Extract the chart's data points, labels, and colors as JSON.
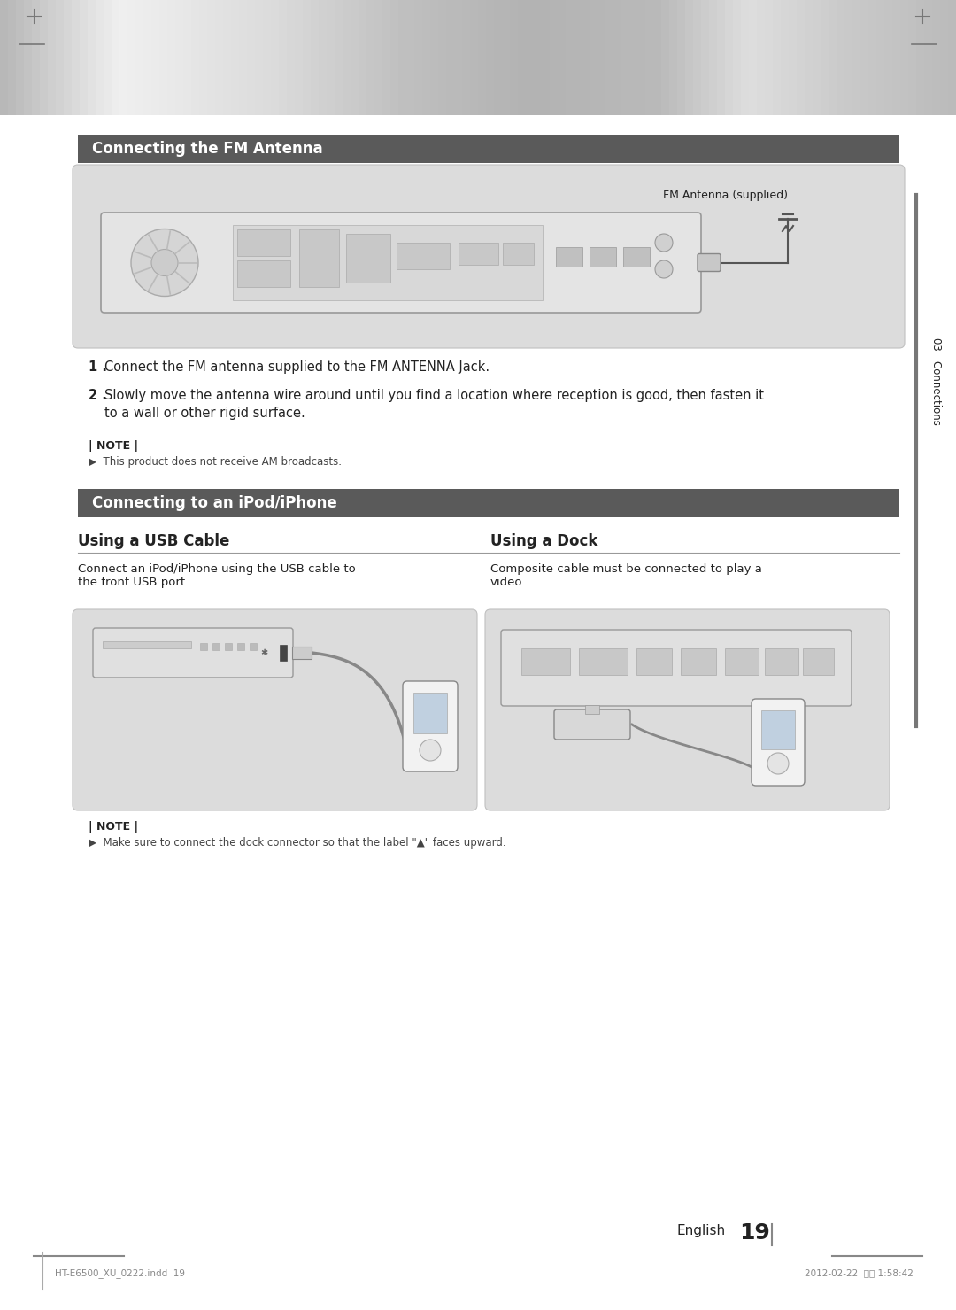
{
  "page_bg": "#ffffff",
  "section1_title": "Connecting the FM Antenna",
  "section1_title_color": "#ffffff",
  "section1_title_bg": "#5a5a5a",
  "diagram1_bg": "#dcdcdc",
  "fm_annotation": "FM Antenna (supplied)",
  "step1_num": "1 .",
  "step1_text": "  Connect the FM antenna supplied to the FM ANTENNA Jack.",
  "step2_num": "2 .",
  "step2_text": "  Slowly move the antenna wire around until you find a location where reception is good, then fasten it\n    to a wall or other rigid surface.",
  "note_label": "| NOTE |",
  "note1": "▶  This product does not receive AM broadcasts.",
  "section2_title": "Connecting to an iPod/iPhone",
  "section2_title_color": "#ffffff",
  "section2_title_bg": "#5a5a5a",
  "sub1_title": "Using a USB Cable",
  "sub2_title": "Using a Dock",
  "sub1_desc": "Connect an iPod/iPhone using the USB cable to\nthe front USB port.",
  "sub2_desc": "Composite cable must be connected to play a\nvideo.",
  "diagram2_bg": "#dcdcdc",
  "diagram3_bg": "#dcdcdc",
  "note2": "▶  Make sure to connect the dock connector so that the label \"▲\" faces upward.",
  "sidebar_color": "#888888",
  "sidebar_bar_color": "#777777",
  "sidebar_text": "03   Connections",
  "page_number_label": "English",
  "page_number": "19",
  "footer_left": "HT-E6500_XU_0222.indd  19",
  "footer_right": "2012-02-22  오후 1:58:42",
  "text_color": "#222222",
  "note_color": "#444444"
}
